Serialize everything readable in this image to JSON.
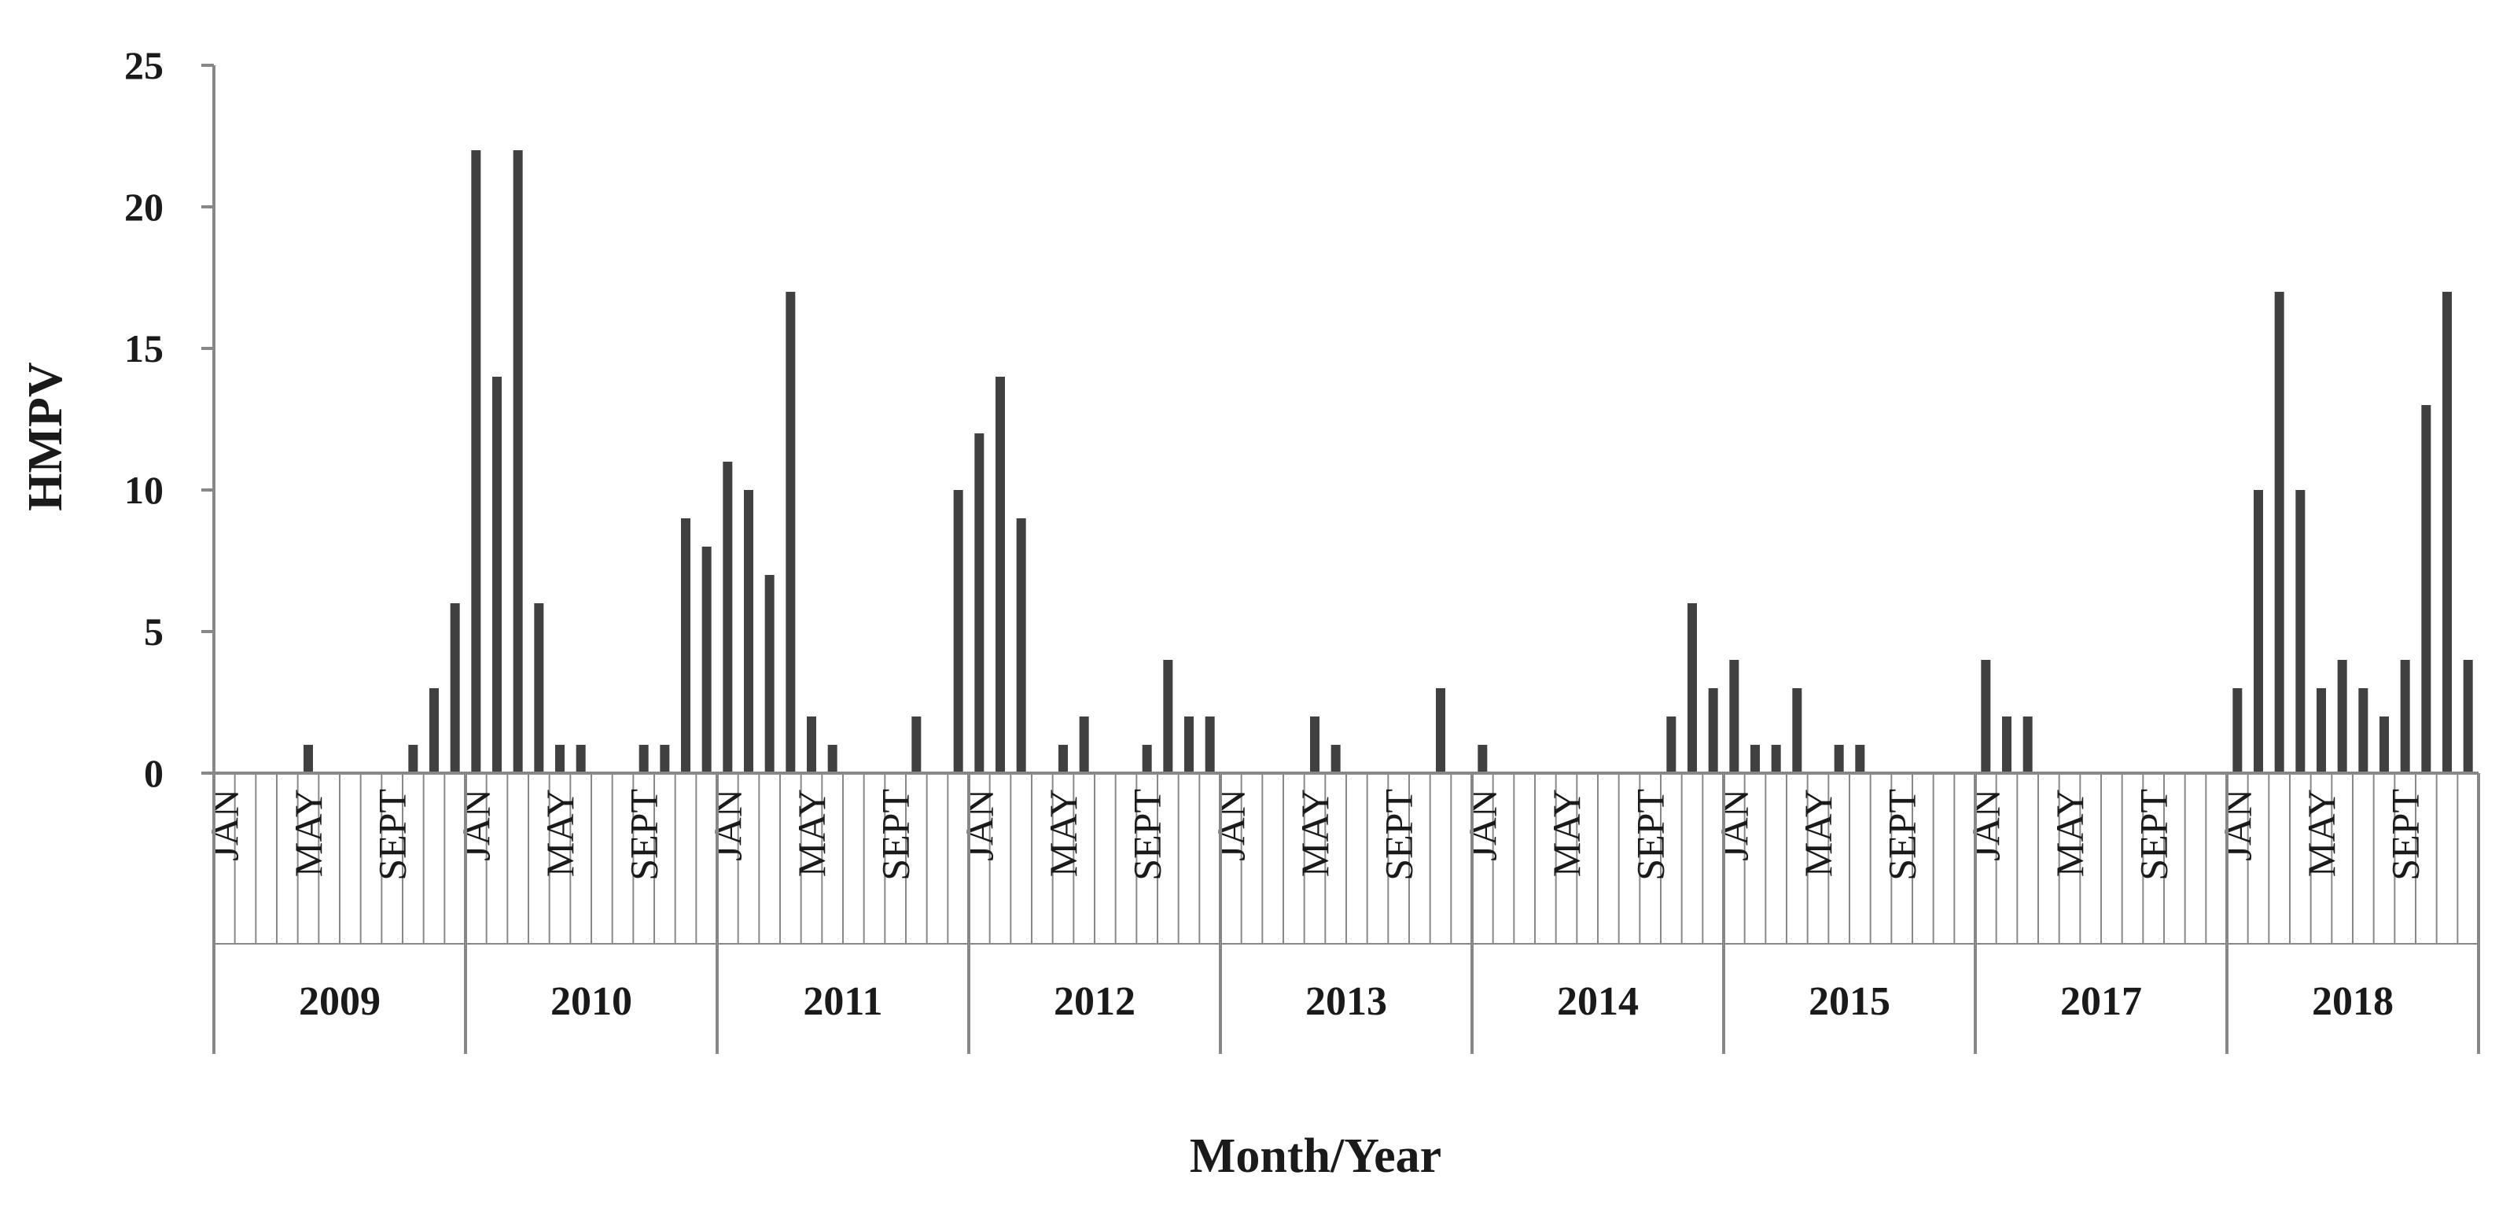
{
  "chart_data": {
    "type": "bar",
    "title": "",
    "xlabel": "Month/Year",
    "ylabel": "HMPV",
    "ylim": [
      0,
      25
    ],
    "yticks": [
      "0",
      "5",
      "10",
      "15",
      "20",
      "25"
    ],
    "grid": false,
    "bar_color": "#404040",
    "axis_color": "#888888",
    "month_tick_labels": [
      "JAN",
      "MAY",
      "SEPT"
    ],
    "years": [
      {
        "year": "2009",
        "values": [
          0,
          0,
          0,
          0,
          1,
          0,
          0,
          0,
          0,
          1,
          3,
          6
        ]
      },
      {
        "year": "2010",
        "values": [
          22,
          14,
          22,
          6,
          1,
          1,
          0,
          0,
          1,
          1,
          9,
          8
        ]
      },
      {
        "year": "2011",
        "values": [
          11,
          10,
          7,
          17,
          2,
          1,
          0,
          0,
          0,
          2,
          0,
          10
        ]
      },
      {
        "year": "2012",
        "values": [
          12,
          14,
          9,
          0,
          1,
          2,
          0,
          0,
          1,
          4,
          2,
          2
        ]
      },
      {
        "year": "2013",
        "values": [
          0,
          0,
          0,
          0,
          2,
          1,
          0,
          0,
          0,
          0,
          3,
          0
        ]
      },
      {
        "year": "2014",
        "values": [
          1,
          0,
          0,
          0,
          0,
          0,
          0,
          0,
          0,
          2,
          6,
          3
        ]
      },
      {
        "year": "2015",
        "values": [
          4,
          1,
          1,
          3,
          0,
          1,
          1,
          0,
          0,
          0,
          0,
          0
        ]
      },
      {
        "year": "2017",
        "values": [
          4,
          2,
          2,
          0,
          0,
          0,
          0,
          0,
          0,
          0,
          0,
          0
        ]
      },
      {
        "year": "2018",
        "values": [
          3,
          10,
          17,
          10,
          3,
          4,
          3,
          2,
          4,
          13,
          17,
          4
        ]
      }
    ]
  }
}
